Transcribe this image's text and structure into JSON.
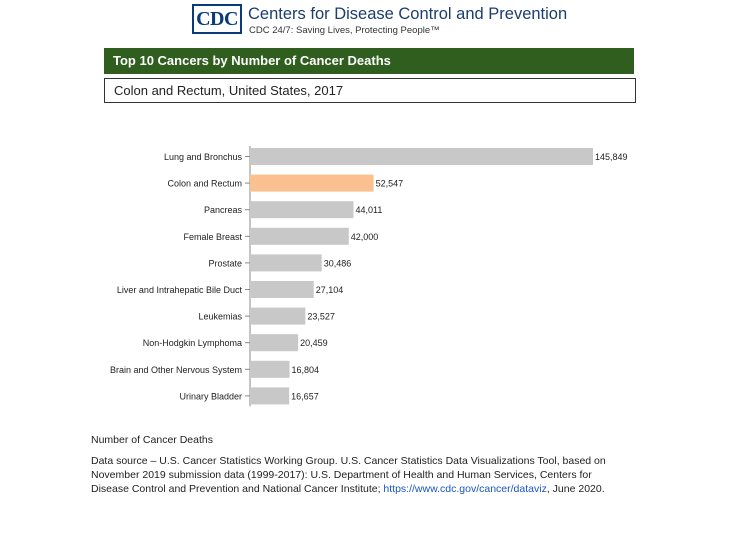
{
  "header": {
    "logo_text": "CDC",
    "org_name": "Centers for Disease Control and Prevention",
    "tagline": "CDC 24/7: Saving Lives, Protecting People™"
  },
  "title": "Top 10 Cancers by Number of Cancer Deaths",
  "subtitle": "Colon and Rectum, United States, 2017",
  "colors": {
    "title_bar": "#2f5e1f",
    "bar": "#c8c8c8",
    "highlight": "#fac08f"
  },
  "chart_data": {
    "type": "bar",
    "orientation": "horizontal",
    "categories": [
      "Lung and Bronchus",
      "Colon and Rectum",
      "Pancreas",
      "Female Breast",
      "Prostate",
      "Liver and Intrahepatic Bile Duct",
      "Leukemias",
      "Non-Hodgkin Lymphoma",
      "Brain and Other Nervous System",
      "Urinary Bladder"
    ],
    "values": [
      145849,
      52547,
      44011,
      42000,
      30486,
      27104,
      23527,
      20459,
      16804,
      16657
    ],
    "value_labels": [
      "145,849",
      "52,547",
      "44,011",
      "42,000",
      "30,486",
      "27,104",
      "23,527",
      "20,459",
      "16,804",
      "16,657"
    ],
    "highlighted_category": "Colon and Rectum",
    "xlim": [
      0,
      145849
    ],
    "grid": false,
    "legend": "none"
  },
  "footer": {
    "axis_label": "Number of Cancer Deaths",
    "source_text": "Data source – U.S. Cancer Statistics Working Group. U.S. Cancer Statistics Data Visualizations Tool, based on November 2019 submission data (1999-2017): U.S. Department of Health and Human Services, Centers for Disease Control and Prevention and National Cancer Institute; ",
    "source_link": "https://www.cdc.gov/cancer/dataviz",
    "source_end": ", June 2020."
  }
}
